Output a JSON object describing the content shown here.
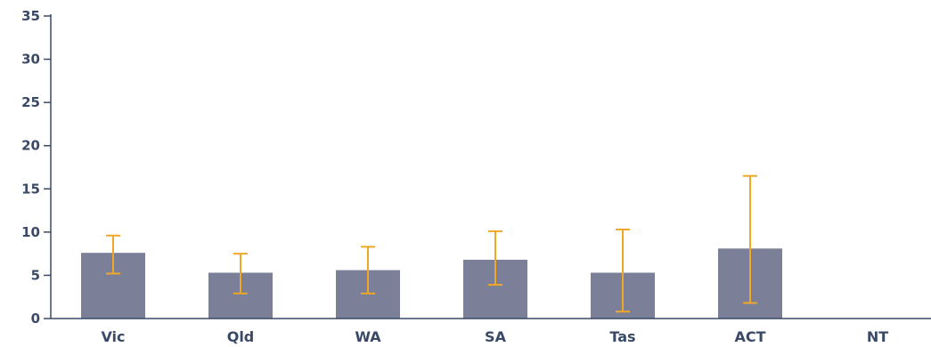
{
  "chart_data": {
    "type": "bar",
    "categories": [
      "Vic",
      "Qld",
      "WA",
      "SA",
      "Tas",
      "ACT",
      "NT"
    ],
    "values": [
      7.6,
      5.3,
      5.6,
      6.8,
      5.3,
      8.1,
      null
    ],
    "error_low": [
      5.2,
      2.9,
      2.9,
      3.9,
      0.8,
      1.8,
      null
    ],
    "error_high": [
      9.6,
      7.5,
      8.3,
      10.1,
      10.3,
      16.5,
      null
    ],
    "title": "",
    "xlabel": "",
    "ylabel": "",
    "ylim": [
      0,
      35
    ],
    "yticks": [
      0,
      5,
      10,
      15,
      20,
      25,
      30,
      35
    ],
    "grid": false,
    "colors": {
      "bar": "#7b7f97",
      "error": "#f0a728",
      "axis": "#3a4a66"
    }
  }
}
